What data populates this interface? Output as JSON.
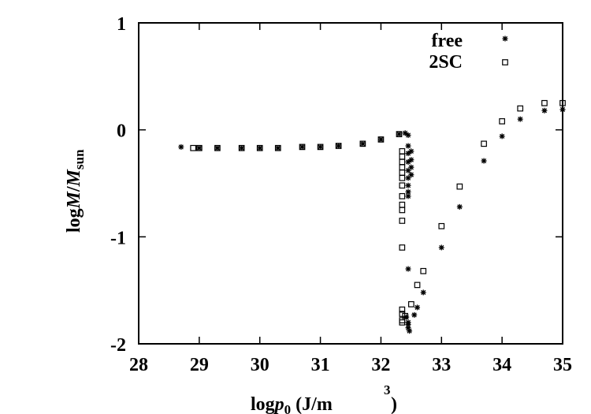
{
  "chart_data": {
    "type": "scatter",
    "xlim": [
      28,
      35
    ],
    "ylim": [
      -2,
      1
    ],
    "x_ticks": [
      28,
      29,
      30,
      31,
      32,
      33,
      34,
      35
    ],
    "y_ticks": [
      -2,
      -1,
      0,
      1
    ],
    "x_tick_labels": [
      "28",
      "29",
      "30",
      "31",
      "32",
      "33",
      "34",
      "35"
    ],
    "y_tick_labels": [
      "-2",
      "-1",
      "0",
      "1"
    ],
    "xlabel": {
      "prefix": "log",
      "italic": "p",
      "sub": "0",
      "unit_open": " (J/m",
      "sup": "3",
      "unit_close": ")"
    },
    "ylabel": {
      "prefix": "log",
      "italic_m": "M",
      "slash": "/",
      "italic_m2": "M",
      "sub": "sun"
    },
    "legend_position": "top-right",
    "grid": false,
    "series": [
      {
        "name": "free",
        "marker": "asterisk",
        "points": [
          [
            28.7,
            -0.16
          ],
          [
            29.0,
            -0.17
          ],
          [
            29.3,
            -0.17
          ],
          [
            29.7,
            -0.17
          ],
          [
            30.0,
            -0.17
          ],
          [
            30.3,
            -0.17
          ],
          [
            30.7,
            -0.16
          ],
          [
            31.0,
            -0.16
          ],
          [
            31.3,
            -0.15
          ],
          [
            31.7,
            -0.13
          ],
          [
            32.0,
            -0.09
          ],
          [
            32.3,
            -0.04
          ],
          [
            32.4,
            -0.03
          ],
          [
            32.45,
            -0.05
          ],
          [
            32.45,
            -0.15
          ],
          [
            32.45,
            -0.22
          ],
          [
            32.45,
            -0.3
          ],
          [
            32.45,
            -0.38
          ],
          [
            32.45,
            -0.45
          ],
          [
            32.45,
            -0.52
          ],
          [
            32.45,
            -0.58
          ],
          [
            32.45,
            -0.62
          ],
          [
            32.5,
            -0.2
          ],
          [
            32.5,
            -0.28
          ],
          [
            32.5,
            -0.35
          ],
          [
            32.5,
            -0.42
          ],
          [
            32.42,
            -1.75
          ],
          [
            32.45,
            -1.8
          ],
          [
            32.45,
            -1.85
          ],
          [
            32.47,
            -1.88
          ],
          [
            32.45,
            -1.82
          ],
          [
            32.45,
            -1.3
          ],
          [
            32.55,
            -1.73
          ],
          [
            32.6,
            -1.66
          ],
          [
            32.7,
            -1.52
          ],
          [
            33.0,
            -1.1
          ],
          [
            33.3,
            -0.72
          ],
          [
            33.7,
            -0.29
          ],
          [
            34.0,
            -0.06
          ],
          [
            34.3,
            0.1
          ],
          [
            34.7,
            0.18
          ],
          [
            35.0,
            0.19
          ]
        ]
      },
      {
        "name": "2SC",
        "marker": "square",
        "points": [
          [
            28.9,
            -0.17
          ],
          [
            29.0,
            -0.17
          ],
          [
            29.3,
            -0.17
          ],
          [
            29.7,
            -0.17
          ],
          [
            30.0,
            -0.17
          ],
          [
            30.3,
            -0.17
          ],
          [
            30.7,
            -0.16
          ],
          [
            31.0,
            -0.16
          ],
          [
            31.3,
            -0.15
          ],
          [
            31.7,
            -0.13
          ],
          [
            32.0,
            -0.09
          ],
          [
            32.3,
            -0.04
          ],
          [
            32.35,
            -0.2
          ],
          [
            32.35,
            -0.25
          ],
          [
            32.35,
            -0.3
          ],
          [
            32.35,
            -0.35
          ],
          [
            32.35,
            -0.4
          ],
          [
            32.35,
            -0.45
          ],
          [
            32.35,
            -0.52
          ],
          [
            32.35,
            -0.62
          ],
          [
            32.35,
            -0.7
          ],
          [
            32.35,
            -0.75
          ],
          [
            32.35,
            -0.85
          ],
          [
            32.35,
            -1.1
          ],
          [
            32.35,
            -1.68
          ],
          [
            32.35,
            -1.72
          ],
          [
            32.35,
            -1.78
          ],
          [
            32.35,
            -1.8
          ],
          [
            32.4,
            -1.74
          ],
          [
            32.5,
            -1.63
          ],
          [
            32.6,
            -1.45
          ],
          [
            32.7,
            -1.32
          ],
          [
            33.0,
            -0.9
          ],
          [
            33.3,
            -0.53
          ],
          [
            33.7,
            -0.13
          ],
          [
            34.0,
            0.08
          ],
          [
            34.3,
            0.2
          ],
          [
            34.7,
            0.25
          ],
          [
            35.0,
            0.25
          ]
        ]
      }
    ]
  }
}
